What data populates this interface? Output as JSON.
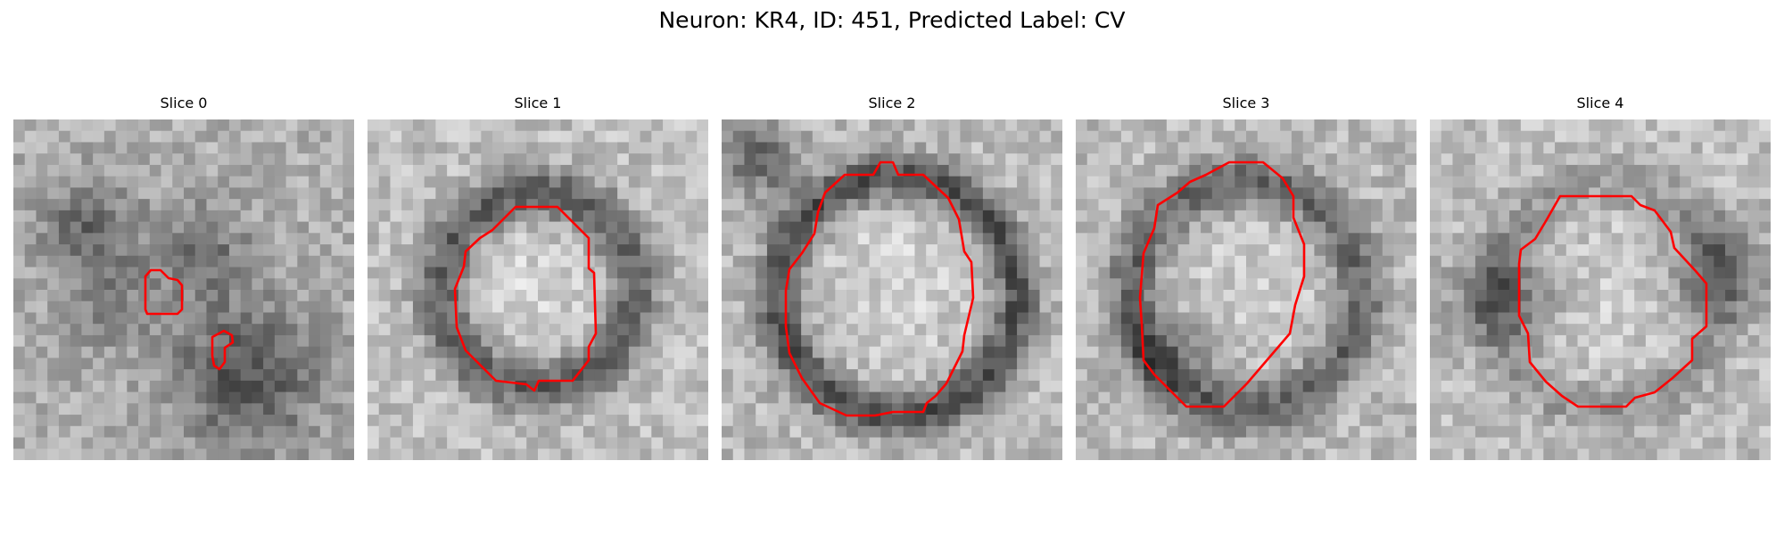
{
  "figure": {
    "title": "Neuron: KR4, ID: 451, Predicted Label: CV"
  },
  "panels": [
    {
      "title": "Slice 0",
      "dark_regions": "left-mid, center, lower-right",
      "contour_color": "#ff0000"
    },
    {
      "title": "Slice 1",
      "dark_regions": "ring around blob",
      "contour_color": "#ff0000"
    },
    {
      "title": "Slice 2",
      "dark_regions": "ring around blob, upper-left corner",
      "contour_color": "#ff0000"
    },
    {
      "title": "Slice 3",
      "dark_regions": "left side of blob",
      "contour_color": "#ff0000"
    },
    {
      "title": "Slice 4",
      "dark_regions": "left and right of blob",
      "contour_color": "#ff0000"
    }
  ]
}
